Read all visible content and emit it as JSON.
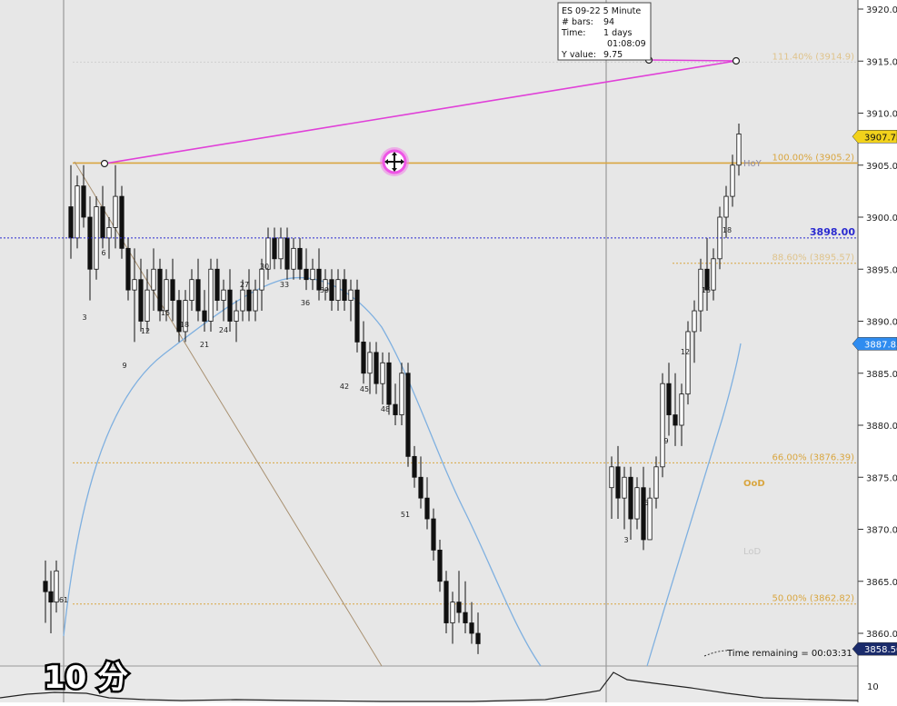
{
  "chart_data": {
    "type": "candlestick",
    "instrument": "ES 09-22 5 Minute",
    "ylim": [
      3856,
      3922
    ],
    "y_ticks": [
      3920.0,
      3915.0,
      3910.0,
      3905.0,
      3900.0,
      3895.0,
      3890.0,
      3885.0,
      3880.0,
      3875.0,
      3870.0,
      3865.0,
      3860.0
    ],
    "candles_before_gap": [
      [
        3865,
        3867,
        3861,
        3864
      ],
      [
        3864,
        3866,
        3860,
        3863
      ],
      [
        3863,
        3867,
        3862,
        3866
      ],
      [
        3901,
        3905,
        3896,
        3898
      ],
      [
        3898,
        3904,
        3897,
        3903
      ],
      [
        3903,
        3905,
        3899,
        3900
      ],
      [
        3900,
        3902,
        3892,
        3895
      ],
      [
        3895,
        3902,
        3894,
        3901
      ],
      [
        3901,
        3903,
        3897,
        3898
      ],
      [
        3898,
        3900,
        3896,
        3899
      ],
      [
        3899,
        3905,
        3897,
        3902
      ],
      [
        3902,
        3903,
        3896,
        3897
      ],
      [
        3897,
        3898,
        3892,
        3893
      ],
      [
        3893,
        3897,
        3888,
        3894
      ],
      [
        3894,
        3896,
        3889,
        3890
      ],
      [
        3890,
        3895,
        3889,
        3893
      ],
      [
        3893,
        3897,
        3891,
        3895
      ],
      [
        3895,
        3896,
        3890,
        3891
      ],
      [
        3891,
        3895,
        3890,
        3894
      ],
      [
        3894,
        3896,
        3890,
        3892
      ],
      [
        3892,
        3893,
        3888,
        3889
      ],
      [
        3889,
        3893,
        3888,
        3892
      ],
      [
        3892,
        3895,
        3891,
        3894
      ],
      [
        3894,
        3896,
        3890,
        3891
      ],
      [
        3891,
        3893,
        3889,
        3890
      ],
      [
        3890,
        3896,
        3889,
        3895
      ],
      [
        3895,
        3896,
        3891,
        3892
      ],
      [
        3892,
        3894,
        3890,
        3893
      ],
      [
        3893,
        3895,
        3889,
        3890
      ],
      [
        3890,
        3892,
        3888,
        3891
      ],
      [
        3891,
        3894,
        3890,
        3893
      ],
      [
        3893,
        3895,
        3890,
        3891
      ],
      [
        3891,
        3894,
        3890,
        3893
      ],
      [
        3893,
        3896,
        3891,
        3895
      ],
      [
        3895,
        3899,
        3894,
        3898
      ],
      [
        3898,
        3899,
        3895,
        3896
      ],
      [
        3896,
        3899,
        3895,
        3898
      ],
      [
        3898,
        3899,
        3894,
        3895
      ],
      [
        3895,
        3898,
        3894,
        3897
      ],
      [
        3897,
        3898,
        3894,
        3895
      ],
      [
        3895,
        3897,
        3893,
        3894
      ],
      [
        3894,
        3896,
        3893,
        3895
      ],
      [
        3895,
        3897,
        3892,
        3893
      ],
      [
        3893,
        3895,
        3892,
        3894
      ],
      [
        3894,
        3895,
        3891,
        3892
      ],
      [
        3892,
        3895,
        3891,
        3894
      ],
      [
        3894,
        3895,
        3891,
        3892
      ],
      [
        3892,
        3894,
        3890,
        3893
      ],
      [
        3893,
        3894,
        3887,
        3888
      ],
      [
        3888,
        3890,
        3884,
        3885
      ],
      [
        3885,
        3888,
        3883,
        3887
      ],
      [
        3887,
        3888,
        3883,
        3884
      ],
      [
        3884,
        3887,
        3882,
        3886
      ],
      [
        3886,
        3887,
        3881,
        3882
      ],
      [
        3882,
        3884,
        3880,
        3881
      ],
      [
        3881,
        3886,
        3880,
        3885
      ],
      [
        3885,
        3886,
        3876,
        3877
      ],
      [
        3877,
        3878,
        3874,
        3875
      ],
      [
        3875,
        3877,
        3872,
        3873
      ],
      [
        3873,
        3875,
        3870,
        3871
      ],
      [
        3871,
        3872,
        3867,
        3868
      ],
      [
        3868,
        3869,
        3864,
        3865
      ],
      [
        3865,
        3866,
        3860,
        3861
      ],
      [
        3861,
        3864,
        3859,
        3863
      ],
      [
        3863,
        3866,
        3861,
        3862
      ],
      [
        3862,
        3865,
        3860,
        3861
      ],
      [
        3861,
        3863,
        3859,
        3860
      ],
      [
        3860,
        3862,
        3858,
        3859
      ]
    ],
    "candles_after_gap": [
      [
        3874,
        3877,
        3871,
        3876
      ],
      [
        3876,
        3878,
        3871,
        3873
      ],
      [
        3873,
        3876,
        3870,
        3875
      ],
      [
        3875,
        3876,
        3869,
        3871
      ],
      [
        3871,
        3875,
        3870,
        3874
      ],
      [
        3874,
        3876,
        3868,
        3869
      ],
      [
        3869,
        3874,
        3869,
        3873
      ],
      [
        3873,
        3877,
        3872,
        3876
      ],
      [
        3876,
        3885,
        3875,
        3884
      ],
      [
        3884,
        3886,
        3879,
        3881
      ],
      [
        3881,
        3885,
        3878,
        3880
      ],
      [
        3880,
        3884,
        3878,
        3883
      ],
      [
        3883,
        3890,
        3882,
        3889
      ],
      [
        3889,
        3892,
        3886,
        3891
      ],
      [
        3891,
        3896,
        3889,
        3895
      ],
      [
        3895,
        3898,
        3891,
        3893
      ],
      [
        3893,
        3897,
        3892,
        3896
      ],
      [
        3896,
        3901,
        3895,
        3900
      ],
      [
        3900,
        3903,
        3898,
        3902
      ],
      [
        3902,
        3906,
        3901,
        3905
      ],
      [
        3905,
        3909,
        3904,
        3908
      ]
    ],
    "bar_labels": [
      "3",
      "6",
      "9",
      "12",
      "15",
      "18",
      "21",
      "24",
      "27",
      "30",
      "33",
      "36",
      "39",
      "42",
      "45",
      "48",
      "51",
      "3",
      "6",
      "9",
      "12",
      "15",
      "18"
    ],
    "fib_levels": [
      {
        "label": "111.40% (3914.9)",
        "value": 3914.9
      },
      {
        "label": "100.00% (3905.2)",
        "value": 3905.2
      },
      {
        "label": "88.60% (3895.57)",
        "value": 3895.57
      },
      {
        "label": "66.00% (3876.39)",
        "value": 3876.39
      },
      {
        "label": "50.00% (3862.82)",
        "value": 3862.82
      }
    ],
    "level_tags": {
      "hoy": "HoY",
      "ood": "OoD",
      "lod": "LoD"
    },
    "horizontal_line": {
      "label": "3898.00",
      "value": 3898.0
    },
    "price_tags": [
      {
        "label": "3907.75",
        "value": 3907.75,
        "color": "#f2d21b"
      },
      {
        "label": "3887.83",
        "value": 3887.83,
        "color": "#2f8cf0"
      },
      {
        "label": "3858.50",
        "value": 3858.5,
        "color": "#1a2b6b"
      }
    ],
    "measure_tool": {
      "title": "ES 09-22 5 Minute",
      "bars": "94",
      "time_days": "1 days",
      "time_hms": "01:08:09",
      "y_value": "9.75"
    },
    "time_remaining": "Time remaining = 00:03:31",
    "indicator_axis_label": "10",
    "overlay_caption": "10 分"
  },
  "labels": {
    "bars_key": "# bars:",
    "time_key": "Time:",
    "y_key": "Y value:"
  },
  "colors": {
    "fib": "#d9a640",
    "ma": "#7fb0e0",
    "measure": "#e040d8",
    "hline": "#2a2ad0",
    "cursor": "#ee55e6"
  }
}
